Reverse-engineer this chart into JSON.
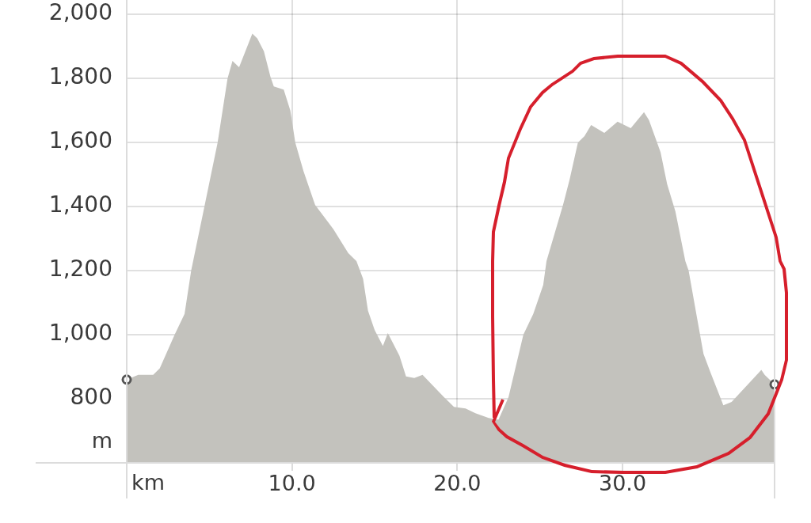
{
  "chart_data": {
    "type": "area",
    "xlabel": "km",
    "ylabel": "m",
    "series": [
      {
        "color": "#c3c2bd",
        "x": [
          0,
          0.7,
          1.6,
          2.0,
          2.9,
          3.5,
          3.9,
          4.7,
          5.5,
          6.1,
          6.4,
          6.8,
          7.6,
          7.9,
          8.3,
          8.7,
          8.9,
          9.5,
          9.9,
          10.2,
          10.7,
          11.4,
          12.5,
          13.4,
          13.9,
          14.3,
          14.6,
          15.0,
          15.5,
          15.8,
          16.5,
          16.9,
          17.4,
          17.9,
          19.2,
          19.8,
          20.5,
          21.1,
          21.9,
          22.4,
          22.5,
          23.1,
          24.0,
          24.6,
          25.2,
          25.4,
          26.4,
          26.8,
          27.3,
          27.7,
          28.1,
          28.9,
          29.7,
          30.5,
          31.3,
          31.6,
          32.3,
          32.7,
          33.2,
          33.8,
          34.0,
          34.5,
          34.9,
          35.3,
          36.1,
          36.6,
          38.4,
          38.6,
          39.2
        ],
        "values": [
          860,
          875,
          875,
          895,
          1000,
          1065,
          1200,
          1400,
          1600,
          1800,
          1855,
          1835,
          1940,
          1925,
          1885,
          1805,
          1775,
          1765,
          1700,
          1600,
          1510,
          1405,
          1330,
          1255,
          1230,
          1175,
          1075,
          1015,
          965,
          1005,
          935,
          870,
          865,
          875,
          805,
          775,
          770,
          755,
          740,
          735,
          735,
          805,
          1000,
          1065,
          1155,
          1230,
          1405,
          1485,
          1600,
          1620,
          1655,
          1630,
          1665,
          1645,
          1695,
          1670,
          1570,
          1470,
          1385,
          1230,
          1200,
          1055,
          940,
          885,
          780,
          790,
          890,
          875,
          845
        ]
      },
      {
        "type": "scatter",
        "color": "#555555",
        "marker": "circle",
        "x": [
          0,
          39.2
        ],
        "values": [
          860,
          845
        ]
      }
    ],
    "xlim": [
      0,
      39.2
    ],
    "ylim": [
      600,
      2045
    ],
    "xticks": [
      {
        "value": 10,
        "label": "10.0"
      },
      {
        "value": 20,
        "label": "20.0"
      },
      {
        "value": 30,
        "label": "30.0"
      }
    ],
    "yticks": [
      800,
      {
        "value": 1000,
        "label": "1,000"
      },
      {
        "value": 1200,
        "label": "1,200"
      },
      {
        "value": 1400,
        "label": "1,400"
      },
      {
        "value": 1600,
        "label": "1,600"
      },
      {
        "value": 1800,
        "label": "1,800"
      },
      {
        "value": 2000,
        "label": "2,000"
      }
    ],
    "grid": true
  }
}
